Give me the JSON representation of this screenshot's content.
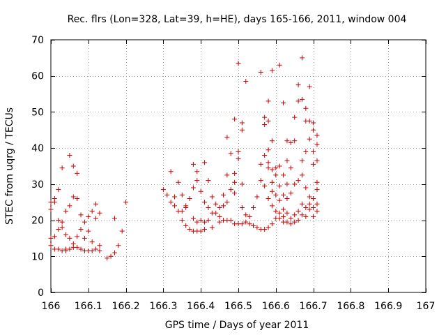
{
  "chart_data": {
    "type": "scatter",
    "title": "Rec. flrs (Lon=328, Lat=39, h=HE), days 165-166, 2011, window 004",
    "xlabel": "GPS time / Days of year 2011",
    "ylabel": "STEC from uqrg / TECUs",
    "xlim": [
      166,
      167
    ],
    "ylim": [
      0,
      70
    ],
    "x_ticks": [
      "166",
      "166.1",
      "166.2",
      "166.3",
      "166.4",
      "166.5",
      "166.6",
      "166.7",
      "166.8",
      "166.9",
      "167"
    ],
    "y_ticks": [
      "0",
      "10",
      "20",
      "30",
      "40",
      "50",
      "60",
      "70"
    ],
    "grid": true,
    "marker": "+",
    "color": "#cc0000",
    "series": [
      {
        "points": [
          [
            166.0,
            25.0
          ],
          [
            166.0,
            23.0
          ],
          [
            166.0,
            15.0
          ],
          [
            166.0,
            13.0
          ],
          [
            166.01,
            26.0
          ],
          [
            166.01,
            25.0
          ],
          [
            166.01,
            15.5
          ],
          [
            166.01,
            12.0
          ],
          [
            166.02,
            28.5
          ],
          [
            166.02,
            20.0
          ],
          [
            166.02,
            17.5
          ],
          [
            166.02,
            12.0
          ],
          [
            166.03,
            34.5
          ],
          [
            166.03,
            19.5
          ],
          [
            166.03,
            18.0
          ],
          [
            166.03,
            11.5
          ],
          [
            166.04,
            22.5
          ],
          [
            166.04,
            16.0
          ],
          [
            166.04,
            12.0
          ],
          [
            166.04,
            11.5
          ],
          [
            166.05,
            38.0
          ],
          [
            166.05,
            24.0
          ],
          [
            166.05,
            15.0
          ],
          [
            166.05,
            12.0
          ],
          [
            166.06,
            35.0
          ],
          [
            166.06,
            26.5
          ],
          [
            166.06,
            13.5
          ],
          [
            166.06,
            12.5
          ],
          [
            166.07,
            33.0
          ],
          [
            166.07,
            26.0
          ],
          [
            166.07,
            15.5
          ],
          [
            166.07,
            12.5
          ],
          [
            166.08,
            21.5
          ],
          [
            166.08,
            17.5
          ],
          [
            166.08,
            12.0
          ],
          [
            166.09,
            19.5
          ],
          [
            166.09,
            15.0
          ],
          [
            166.09,
            11.5
          ],
          [
            166.1,
            21.0
          ],
          [
            166.1,
            17.0
          ],
          [
            166.1,
            11.5
          ],
          [
            166.11,
            22.5
          ],
          [
            166.11,
            14.0
          ],
          [
            166.11,
            11.5
          ],
          [
            166.12,
            24.5
          ],
          [
            166.12,
            20.5
          ],
          [
            166.12,
            12.0
          ],
          [
            166.13,
            22.0
          ],
          [
            166.13,
            13.0
          ],
          [
            166.13,
            11.5
          ],
          [
            166.15,
            9.5
          ],
          [
            166.16,
            10.0
          ],
          [
            166.17,
            20.5
          ],
          [
            166.17,
            11.0
          ],
          [
            166.18,
            13.0
          ],
          [
            166.19,
            17.0
          ],
          [
            166.2,
            25.0
          ],
          [
            166.3,
            28.5
          ],
          [
            166.31,
            27.0
          ],
          [
            166.32,
            33.5
          ],
          [
            166.32,
            25.0
          ],
          [
            166.33,
            26.5
          ],
          [
            166.33,
            24.0
          ],
          [
            166.34,
            30.5
          ],
          [
            166.34,
            22.5
          ],
          [
            166.35,
            27.0
          ],
          [
            166.35,
            22.5
          ],
          [
            166.35,
            20.0
          ],
          [
            166.36,
            24.0
          ],
          [
            166.36,
            23.5
          ],
          [
            166.36,
            18.5
          ],
          [
            166.37,
            26.0
          ],
          [
            166.37,
            17.5
          ],
          [
            166.38,
            35.5
          ],
          [
            166.38,
            29.0
          ],
          [
            166.38,
            20.5
          ],
          [
            166.38,
            17.0
          ],
          [
            166.39,
            33.5
          ],
          [
            166.39,
            31.0
          ],
          [
            166.39,
            19.5
          ],
          [
            166.39,
            17.0
          ],
          [
            166.4,
            28.0
          ],
          [
            166.4,
            20.0
          ],
          [
            166.4,
            17.0
          ],
          [
            166.41,
            36.0
          ],
          [
            166.41,
            25.0
          ],
          [
            166.41,
            19.5
          ],
          [
            166.41,
            17.5
          ],
          [
            166.42,
            31.0
          ],
          [
            166.42,
            23.5
          ],
          [
            166.42,
            20.0
          ],
          [
            166.43,
            26.5
          ],
          [
            166.43,
            22.0
          ],
          [
            166.43,
            18.0
          ],
          [
            166.44,
            24.5
          ],
          [
            166.44,
            22.0
          ],
          [
            166.45,
            23.5
          ],
          [
            166.45,
            21.0
          ],
          [
            166.45,
            19.5
          ],
          [
            166.46,
            27.0
          ],
          [
            166.46,
            24.0
          ],
          [
            166.46,
            20.0
          ],
          [
            166.47,
            43.0
          ],
          [
            166.47,
            32.5
          ],
          [
            166.47,
            25.0
          ],
          [
            166.47,
            20.0
          ],
          [
            166.48,
            38.5
          ],
          [
            166.48,
            28.5
          ],
          [
            166.48,
            20.0
          ],
          [
            166.49,
            48.0
          ],
          [
            166.49,
            33.0
          ],
          [
            166.49,
            30.5
          ],
          [
            166.49,
            27.5
          ],
          [
            166.49,
            19.0
          ],
          [
            166.5,
            63.5
          ],
          [
            166.5,
            39.0
          ],
          [
            166.5,
            37.0
          ],
          [
            166.5,
            19.0
          ],
          [
            166.51,
            47.0
          ],
          [
            166.51,
            45.0
          ],
          [
            166.51,
            30.0
          ],
          [
            166.51,
            23.5
          ],
          [
            166.51,
            19.0
          ],
          [
            166.52,
            58.5
          ],
          [
            166.52,
            21.5
          ],
          [
            166.52,
            19.5
          ],
          [
            166.53,
            21.0
          ],
          [
            166.53,
            19.0
          ],
          [
            166.54,
            23.5
          ],
          [
            166.54,
            18.5
          ],
          [
            166.55,
            26.5
          ],
          [
            166.55,
            18.0
          ],
          [
            166.56,
            61.0
          ],
          [
            166.56,
            35.5
          ],
          [
            166.56,
            31.0
          ],
          [
            166.56,
            17.5
          ],
          [
            166.57,
            48.5
          ],
          [
            166.57,
            46.5
          ],
          [
            166.57,
            38.0
          ],
          [
            166.57,
            29.5
          ],
          [
            166.57,
            17.5
          ],
          [
            166.58,
            53.0
          ],
          [
            166.58,
            47.5
          ],
          [
            166.58,
            39.5
          ],
          [
            166.58,
            36.0
          ],
          [
            166.58,
            34.5
          ],
          [
            166.58,
            26.0
          ],
          [
            166.58,
            18.0
          ],
          [
            166.59,
            61.5
          ],
          [
            166.59,
            42.0
          ],
          [
            166.59,
            34.0
          ],
          [
            166.59,
            30.5
          ],
          [
            166.59,
            28.0
          ],
          [
            166.59,
            24.0
          ],
          [
            166.59,
            19.0
          ],
          [
            166.6,
            34.5
          ],
          [
            166.6,
            32.5
          ],
          [
            166.6,
            27.0
          ],
          [
            166.6,
            22.5
          ],
          [
            166.6,
            20.5
          ],
          [
            166.61,
            63.0
          ],
          [
            166.61,
            35.0
          ],
          [
            166.61,
            29.5
          ],
          [
            166.61,
            25.5
          ],
          [
            166.61,
            22.0
          ],
          [
            166.61,
            20.5
          ],
          [
            166.62,
            52.5
          ],
          [
            166.62,
            32.5
          ],
          [
            166.62,
            27.0
          ],
          [
            166.62,
            23.0
          ],
          [
            166.62,
            21.0
          ],
          [
            166.62,
            19.5
          ],
          [
            166.63,
            42.0
          ],
          [
            166.63,
            36.5
          ],
          [
            166.63,
            30.0
          ],
          [
            166.63,
            26.0
          ],
          [
            166.63,
            22.0
          ],
          [
            166.63,
            19.5
          ],
          [
            166.64,
            41.5
          ],
          [
            166.64,
            34.5
          ],
          [
            166.64,
            27.5
          ],
          [
            166.64,
            20.5
          ],
          [
            166.64,
            19.0
          ],
          [
            166.65,
            48.5
          ],
          [
            166.65,
            42.0
          ],
          [
            166.65,
            30.0
          ],
          [
            166.65,
            21.5
          ],
          [
            166.65,
            19.5
          ],
          [
            166.66,
            57.5
          ],
          [
            166.66,
            53.0
          ],
          [
            166.66,
            31.0
          ],
          [
            166.66,
            22.5
          ],
          [
            166.66,
            20.0
          ],
          [
            166.67,
            65.0
          ],
          [
            166.67,
            53.5
          ],
          [
            166.67,
            36.5
          ],
          [
            166.67,
            32.5
          ],
          [
            166.67,
            24.5
          ],
          [
            166.67,
            21.5
          ],
          [
            166.68,
            51.0
          ],
          [
            166.68,
            47.5
          ],
          [
            166.68,
            39.0
          ],
          [
            166.68,
            29.0
          ],
          [
            166.68,
            23.5
          ],
          [
            166.68,
            21.0
          ],
          [
            166.69,
            57.0
          ],
          [
            166.69,
            47.5
          ],
          [
            166.69,
            42.5
          ],
          [
            166.69,
            26.5
          ],
          [
            166.69,
            24.5
          ],
          [
            166.69,
            23.0
          ],
          [
            166.7,
            47.0
          ],
          [
            166.7,
            45.0
          ],
          [
            166.7,
            39.0
          ],
          [
            166.7,
            35.5
          ],
          [
            166.7,
            26.0
          ],
          [
            166.7,
            23.5
          ],
          [
            166.7,
            21.0
          ],
          [
            166.71,
            43.5
          ],
          [
            166.71,
            41.0
          ],
          [
            166.71,
            36.5
          ],
          [
            166.71,
            30.5
          ],
          [
            166.71,
            28.5
          ],
          [
            166.71,
            24.5
          ],
          [
            166.71,
            22.5
          ]
        ]
      }
    ]
  }
}
